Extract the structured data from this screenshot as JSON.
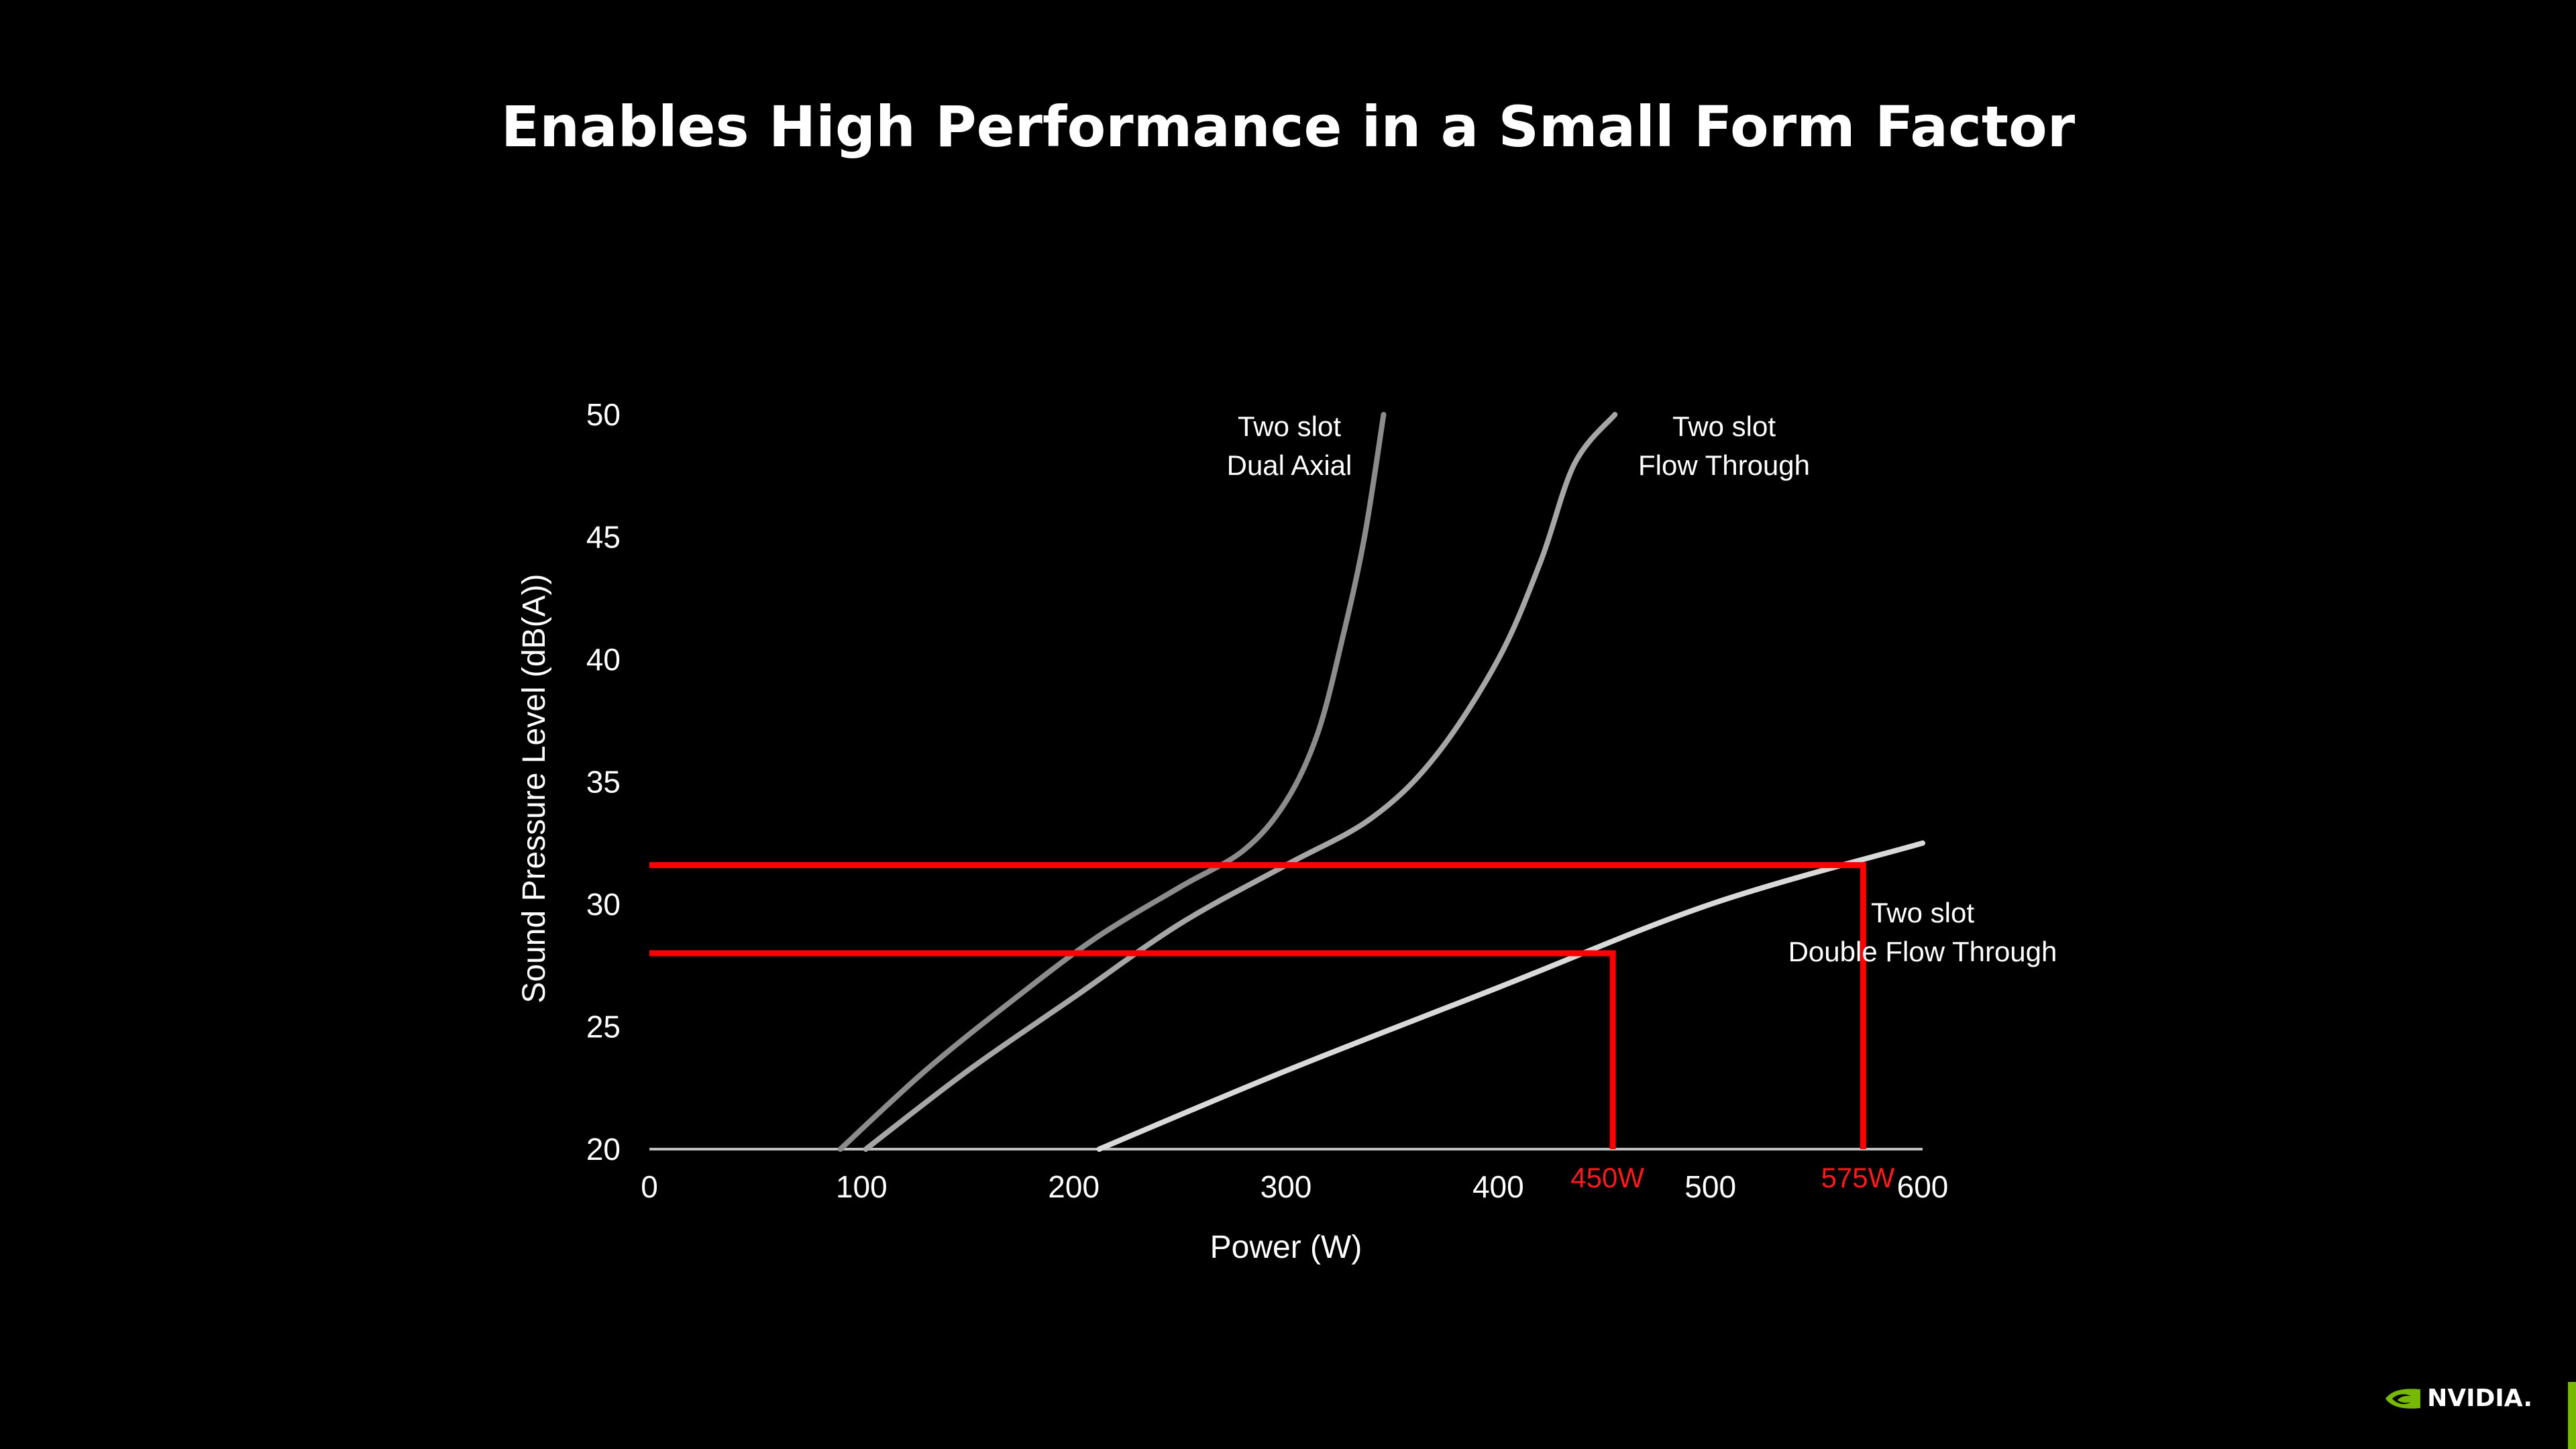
{
  "slide": {
    "title": "Enables High Performance in a Small Form Factor"
  },
  "brand": {
    "logo_text": "NVIDIA.",
    "accent": "#76b900"
  },
  "chart_data": {
    "type": "line",
    "title": "Enables High Performance in a Small Form Factor",
    "xlabel": "Power (W)",
    "ylabel": "Sound Pressure Level (dB(A))",
    "xlim": [
      0,
      600
    ],
    "ylim": [
      20,
      50
    ],
    "x_ticks": [
      "0",
      "100",
      "200",
      "300",
      "400",
      "500",
      "600"
    ],
    "y_ticks": [
      "20",
      "25",
      "30",
      "35",
      "40",
      "45",
      "50"
    ],
    "grid": false,
    "series": [
      {
        "name": "Two slot Dual Axial",
        "label_lines": [
          "Two slot",
          "Dual Axial"
        ],
        "color": "#8c8c8c",
        "points": [
          [
            90,
            20
          ],
          [
            130,
            23.2
          ],
          [
            170,
            26
          ],
          [
            210,
            28.6
          ],
          [
            250,
            30.7
          ],
          [
            280,
            32.2
          ],
          [
            300,
            34.2
          ],
          [
            315,
            37
          ],
          [
            327,
            41
          ],
          [
            337,
            45
          ],
          [
            346,
            50
          ]
        ]
      },
      {
        "name": "Two slot Flow Through",
        "label_lines": [
          "Two slot",
          "Flow Through"
        ],
        "color": "#a6a6a6",
        "points": [
          [
            102,
            20
          ],
          [
            150,
            23.2
          ],
          [
            200,
            26.2
          ],
          [
            250,
            29.2
          ],
          [
            300,
            31.6
          ],
          [
            340,
            33.5
          ],
          [
            370,
            36
          ],
          [
            400,
            40
          ],
          [
            420,
            44
          ],
          [
            436,
            48
          ],
          [
            455,
            50
          ]
        ]
      },
      {
        "name": "Two slot Double Flow Through",
        "label_lines": [
          "Two slot",
          "Double Flow Through"
        ],
        "color": "#d9d9d9",
        "points": [
          [
            212,
            20
          ],
          [
            300,
            23.2
          ],
          [
            400,
            26.6
          ],
          [
            500,
            30
          ],
          [
            600,
            32.5
          ]
        ]
      }
    ],
    "markers": [
      {
        "label": "450W",
        "x": 454,
        "y": 28,
        "color": "#ff0000"
      },
      {
        "label": "575W",
        "x": 572,
        "y": 31.6,
        "color": "#ff0000"
      }
    ]
  }
}
